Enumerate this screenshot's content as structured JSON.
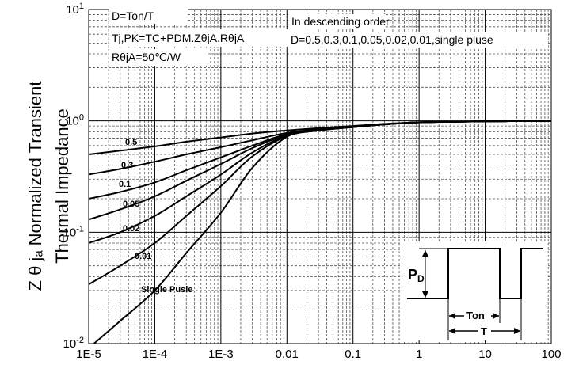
{
  "chart_data": {
    "type": "line",
    "title": "",
    "xlabel": "",
    "ylabel_line1": "Z θ jₐ  Normalized Transient",
    "ylabel_line2": "Thermal   Impedance",
    "x_scale": "log",
    "y_scale": "log",
    "xlim": [
      1e-05,
      100
    ],
    "ylim": [
      0.01,
      10
    ],
    "grid": true,
    "x_tick_labels": [
      "1E-5",
      "1E-4",
      "1E-3",
      "0.01",
      "0.1",
      "1",
      "10",
      "100"
    ],
    "y_tick_labels": [
      {
        "base": "10",
        "exp": "1"
      },
      {
        "base": "10",
        "exp": "0"
      },
      {
        "base": "10",
        "exp": "-1"
      },
      {
        "base": "10",
        "exp": "-2"
      }
    ],
    "annotations": {
      "duty_formula": "D=Ton/T",
      "tj_formula": "Tj,PK=TC+PDM.ZθjA.RθjA",
      "rtheta": "RθjA=50℃/W",
      "order_title": "In descending order",
      "order_values": "D=0.5,0.3,0.1,0.05,0.02,0.01,single pluse"
    },
    "series": [
      {
        "name": "0.5",
        "x": [
          1e-05,
          3e-05,
          0.0001,
          0.0003,
          0.001,
          0.003,
          0.01,
          0.03,
          0.1,
          0.3,
          1,
          10,
          100
        ],
        "y": [
          0.5,
          0.54,
          0.59,
          0.65,
          0.71,
          0.77,
          0.82,
          0.86,
          0.9,
          0.94,
          0.97,
          0.99,
          1.0
        ]
      },
      {
        "name": "0.3",
        "x": [
          1e-05,
          3e-05,
          0.0001,
          0.0003,
          0.001,
          0.003,
          0.01,
          0.03,
          0.1,
          0.3,
          1,
          10,
          100
        ],
        "y": [
          0.33,
          0.37,
          0.43,
          0.5,
          0.58,
          0.67,
          0.78,
          0.84,
          0.89,
          0.93,
          0.97,
          0.99,
          1.0
        ]
      },
      {
        "name": "0.1",
        "x": [
          1e-05,
          3e-05,
          0.0001,
          0.0003,
          0.001,
          0.003,
          0.01,
          0.03,
          0.1,
          0.3,
          1,
          10,
          100
        ],
        "y": [
          0.2,
          0.23,
          0.28,
          0.36,
          0.47,
          0.6,
          0.76,
          0.83,
          0.88,
          0.93,
          0.97,
          0.99,
          1.0
        ]
      },
      {
        "name": "0.05",
        "x": [
          1e-05,
          3e-05,
          0.0001,
          0.0003,
          0.001,
          0.003,
          0.01,
          0.03,
          0.1,
          0.3,
          1,
          10,
          100
        ],
        "y": [
          0.13,
          0.16,
          0.21,
          0.29,
          0.41,
          0.57,
          0.75,
          0.83,
          0.88,
          0.93,
          0.97,
          0.99,
          1.0
        ]
      },
      {
        "name": "0.02",
        "x": [
          1e-05,
          3e-05,
          0.0001,
          0.0003,
          0.001,
          0.003,
          0.01,
          0.03,
          0.1,
          0.3,
          1,
          10,
          100
        ],
        "y": [
          0.08,
          0.1,
          0.14,
          0.21,
          0.33,
          0.52,
          0.74,
          0.82,
          0.88,
          0.93,
          0.97,
          0.99,
          1.0
        ]
      },
      {
        "name": "0.01",
        "x": [
          1e-05,
          3e-05,
          0.0001,
          0.0003,
          0.001,
          0.003,
          0.01,
          0.03,
          0.1,
          0.3,
          1,
          10,
          100
        ],
        "y": [
          0.034,
          0.05,
          0.08,
          0.14,
          0.26,
          0.48,
          0.73,
          0.82,
          0.88,
          0.93,
          0.97,
          0.99,
          1.0
        ]
      },
      {
        "name": "Single Pusle",
        "x": [
          1.2e-05,
          3e-05,
          0.0001,
          0.0003,
          0.001,
          0.003,
          0.01,
          0.03,
          0.1,
          0.3,
          1,
          10,
          100
        ],
        "y": [
          0.01,
          0.016,
          0.03,
          0.065,
          0.15,
          0.38,
          0.72,
          0.82,
          0.88,
          0.93,
          0.97,
          0.99,
          1.0
        ]
      }
    ],
    "inset": {
      "pd_label": "P",
      "pd_sub": "D",
      "ton_label": "Ton",
      "t_label": "T"
    }
  }
}
